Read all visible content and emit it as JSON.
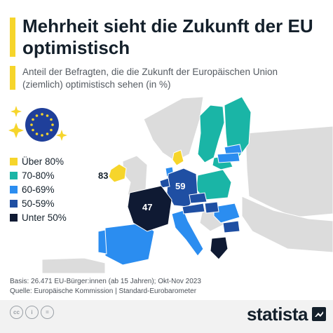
{
  "title": "Mehrheit sieht die Zukunft der EU optimistisch",
  "subtitle": "Anteil der Befragten, die die Zukunft der Europäischen Union (ziemlich) optimistisch sehen (in %)",
  "legend": [
    {
      "label": "Über 80%",
      "color": "#f6d52b"
    },
    {
      "label": "70-80%",
      "color": "#1ab5a6"
    },
    {
      "label": "60-69%",
      "color": "#2b8df0"
    },
    {
      "label": "50-59%",
      "color": "#1f4fa3"
    },
    {
      "label": "Unter 50%",
      "color": "#0f1a33"
    }
  ],
  "map_labels": {
    "ireland": "83",
    "germany": "59",
    "france": "47"
  },
  "footer": {
    "basis": "Basis: 26.471 EU-Bürger:innen (ab 15 Jahren); Okt-Nov 2023",
    "source": "Quelle: Europäische Kommission | Standard-Eurobarometer"
  },
  "brand": "statista",
  "colors": {
    "accent": "#f6d52b",
    "eu_blue": "#1f3f9a",
    "non_eu_land": "#dcdcdc"
  }
}
